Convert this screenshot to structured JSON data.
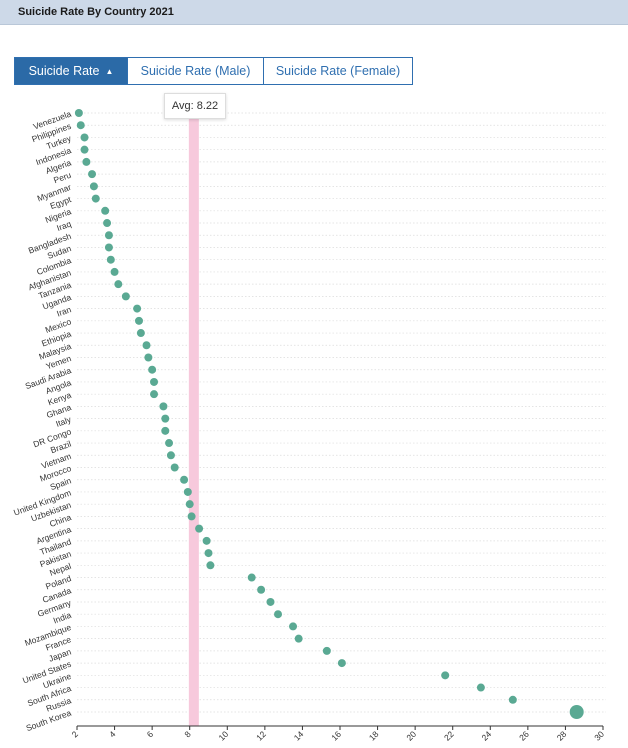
{
  "window": {
    "title": "Suicide Rate By Country 2021"
  },
  "tabs": [
    {
      "label": "Suicide Rate",
      "active": true,
      "sort_icon": "caret-up-icon"
    },
    {
      "label": "Suicide Rate (Male)",
      "active": false
    },
    {
      "label": "Suicide Rate (Female)",
      "active": false
    }
  ],
  "tooltip": {
    "text": "Avg: 8.22"
  },
  "colors": {
    "dot": "#5aa993",
    "avg_band": "#f7c9dc",
    "tab_active": "#2b6aa7",
    "title_bar": "#cdd9e8"
  },
  "chart_data": {
    "type": "scatter",
    "orientation": "horizontal",
    "average": 8.22,
    "xlim": [
      2,
      30
    ],
    "x_ticks": [
      2,
      4,
      6,
      8,
      10,
      12,
      14,
      16,
      18,
      20,
      22,
      24,
      26,
      28,
      30
    ],
    "grid": "horizontal-dotted",
    "highlighted": "South Korea",
    "categories": [
      "Venezuela",
      "Philippines",
      "Turkey",
      "Indonesia",
      "Algeria",
      "Peru",
      "Myanmar",
      "Egypt",
      "Nigeria",
      "Iraq",
      "Bangladesh",
      "Sudan",
      "Colombia",
      "Afghanistan",
      "Tanzania",
      "Uganda",
      "Iran",
      "Mexico",
      "Ethiopia",
      "Malaysia",
      "Yemen",
      "Saudi Arabia",
      "Angola",
      "Kenya",
      "Ghana",
      "Italy",
      "DR Congo",
      "Brazil",
      "Vietnam",
      "Morocco",
      "Spain",
      "United Kingdom",
      "Uzbekistan",
      "China",
      "Argentina",
      "Thailand",
      "Pakistan",
      "Nepal",
      "Poland",
      "Canada",
      "Germany",
      "India",
      "Mozambique",
      "France",
      "Japan",
      "United States",
      "Ukraine",
      "South Africa",
      "Russia",
      "South Korea"
    ],
    "values": [
      2.1,
      2.2,
      2.4,
      2.4,
      2.5,
      2.8,
      2.9,
      3.0,
      3.5,
      3.6,
      3.7,
      3.7,
      3.8,
      4.0,
      4.2,
      4.6,
      5.2,
      5.3,
      5.4,
      5.7,
      5.8,
      6.0,
      6.1,
      6.1,
      6.6,
      6.7,
      6.7,
      6.9,
      7.0,
      7.2,
      7.7,
      7.9,
      8.0,
      8.1,
      8.5,
      8.9,
      9.0,
      9.1,
      11.3,
      11.8,
      12.3,
      12.7,
      13.5,
      13.8,
      15.3,
      16.1,
      21.6,
      23.5,
      25.2,
      28.6
    ]
  }
}
